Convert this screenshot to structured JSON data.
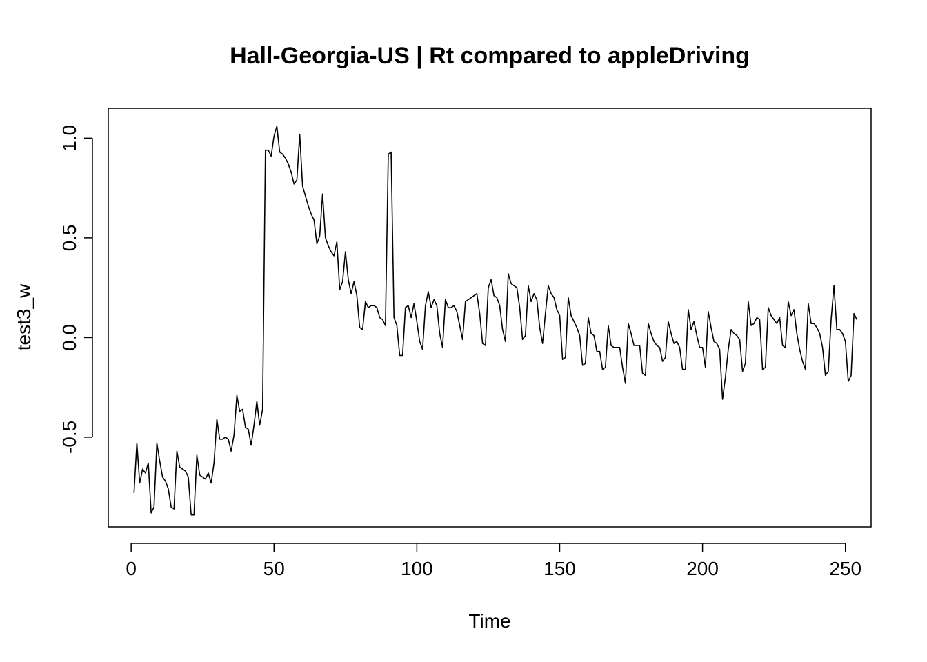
{
  "chart_data": {
    "type": "line",
    "title": "Hall-Georgia-US | Rt compared to appleDriving",
    "xlabel": "Time",
    "ylabel": "test3_w",
    "xlim": [
      -8,
      259
    ],
    "ylim": [
      -0.95,
      1.15
    ],
    "x_ticks": [
      0,
      50,
      100,
      150,
      200,
      250
    ],
    "x_tick_labels": [
      "0",
      "50",
      "100",
      "150",
      "200",
      "250"
    ],
    "y_ticks": [
      -0.5,
      0.0,
      0.5,
      1.0
    ],
    "y_tick_labels": [
      "-0.5",
      "0.0",
      "0.5",
      "1.0"
    ],
    "grid": false,
    "legend": "none",
    "series": [
      {
        "x_start": 1,
        "values": [
          -0.78,
          -0.53,
          -0.73,
          -0.66,
          -0.68,
          -0.63,
          -0.88,
          -0.85,
          -0.53,
          -0.62,
          -0.7,
          -0.72,
          -0.76,
          -0.85,
          -0.86,
          -0.57,
          -0.65,
          -0.66,
          -0.67,
          -0.7,
          -0.89,
          -0.89,
          -0.59,
          -0.69,
          -0.7,
          -0.71,
          -0.68,
          -0.73,
          -0.63,
          -0.41,
          -0.51,
          -0.51,
          -0.5,
          -0.51,
          -0.57,
          -0.49,
          -0.29,
          -0.37,
          -0.36,
          -0.45,
          -0.46,
          -0.54,
          -0.44,
          -0.32,
          -0.44,
          -0.36,
          0.94,
          0.94,
          0.91,
          1.01,
          1.06,
          0.93,
          0.92,
          0.9,
          0.87,
          0.83,
          0.77,
          0.79,
          1.02,
          0.76,
          0.71,
          0.66,
          0.62,
          0.59,
          0.47,
          0.51,
          0.72,
          0.5,
          0.46,
          0.43,
          0.41,
          0.48,
          0.24,
          0.28,
          0.43,
          0.29,
          0.22,
          0.28,
          0.21,
          0.05,
          0.04,
          0.18,
          0.15,
          0.16,
          0.16,
          0.15,
          0.1,
          0.09,
          0.06,
          0.92,
          0.93,
          0.1,
          0.06,
          -0.09,
          -0.09,
          0.15,
          0.16,
          0.1,
          0.17,
          0.08,
          -0.02,
          -0.06,
          0.16,
          0.23,
          0.15,
          0.19,
          0.16,
          0.02,
          -0.05,
          0.19,
          0.15,
          0.15,
          0.16,
          0.13,
          0.06,
          -0.01,
          0.18,
          0.19,
          0.2,
          0.21,
          0.22,
          0.12,
          -0.03,
          -0.04,
          0.25,
          0.29,
          0.21,
          0.2,
          0.16,
          0.04,
          -0.02,
          0.32,
          0.27,
          0.26,
          0.25,
          0.15,
          -0.01,
          0.01,
          0.26,
          0.18,
          0.22,
          0.19,
          0.05,
          -0.03,
          0.12,
          0.26,
          0.22,
          0.2,
          0.14,
          0.11,
          -0.11,
          -0.1,
          0.2,
          0.11,
          0.08,
          0.05,
          0.01,
          -0.14,
          -0.13,
          0.1,
          0.02,
          0.01,
          -0.07,
          -0.07,
          -0.16,
          -0.15,
          0.06,
          -0.04,
          -0.05,
          -0.05,
          -0.05,
          -0.15,
          -0.23,
          0.07,
          0.02,
          -0.04,
          -0.04,
          -0.04,
          -0.18,
          -0.19,
          0.07,
          0.02,
          -0.02,
          -0.04,
          -0.05,
          -0.12,
          -0.1,
          0.08,
          0.02,
          -0.03,
          -0.02,
          -0.05,
          -0.16,
          -0.16,
          0.14,
          0.04,
          0.08,
          0.01,
          -0.05,
          -0.05,
          -0.15,
          0.13,
          0.05,
          -0.02,
          -0.03,
          -0.06,
          -0.31,
          -0.2,
          -0.06,
          0.04,
          0.02,
          0.01,
          -0.01,
          -0.17,
          -0.13,
          0.18,
          0.06,
          0.07,
          0.1,
          0.09,
          -0.16,
          -0.15,
          0.15,
          0.11,
          0.09,
          0.07,
          0.1,
          -0.04,
          -0.05,
          0.18,
          0.11,
          0.14,
          0.02,
          -0.06,
          -0.12,
          -0.16,
          0.17,
          0.07,
          0.07,
          0.05,
          0.02,
          -0.05,
          -0.19,
          -0.17,
          0.09,
          0.26,
          0.04,
          0.04,
          0.02,
          -0.02,
          -0.22,
          -0.19,
          0.12,
          0.09
        ]
      }
    ]
  }
}
